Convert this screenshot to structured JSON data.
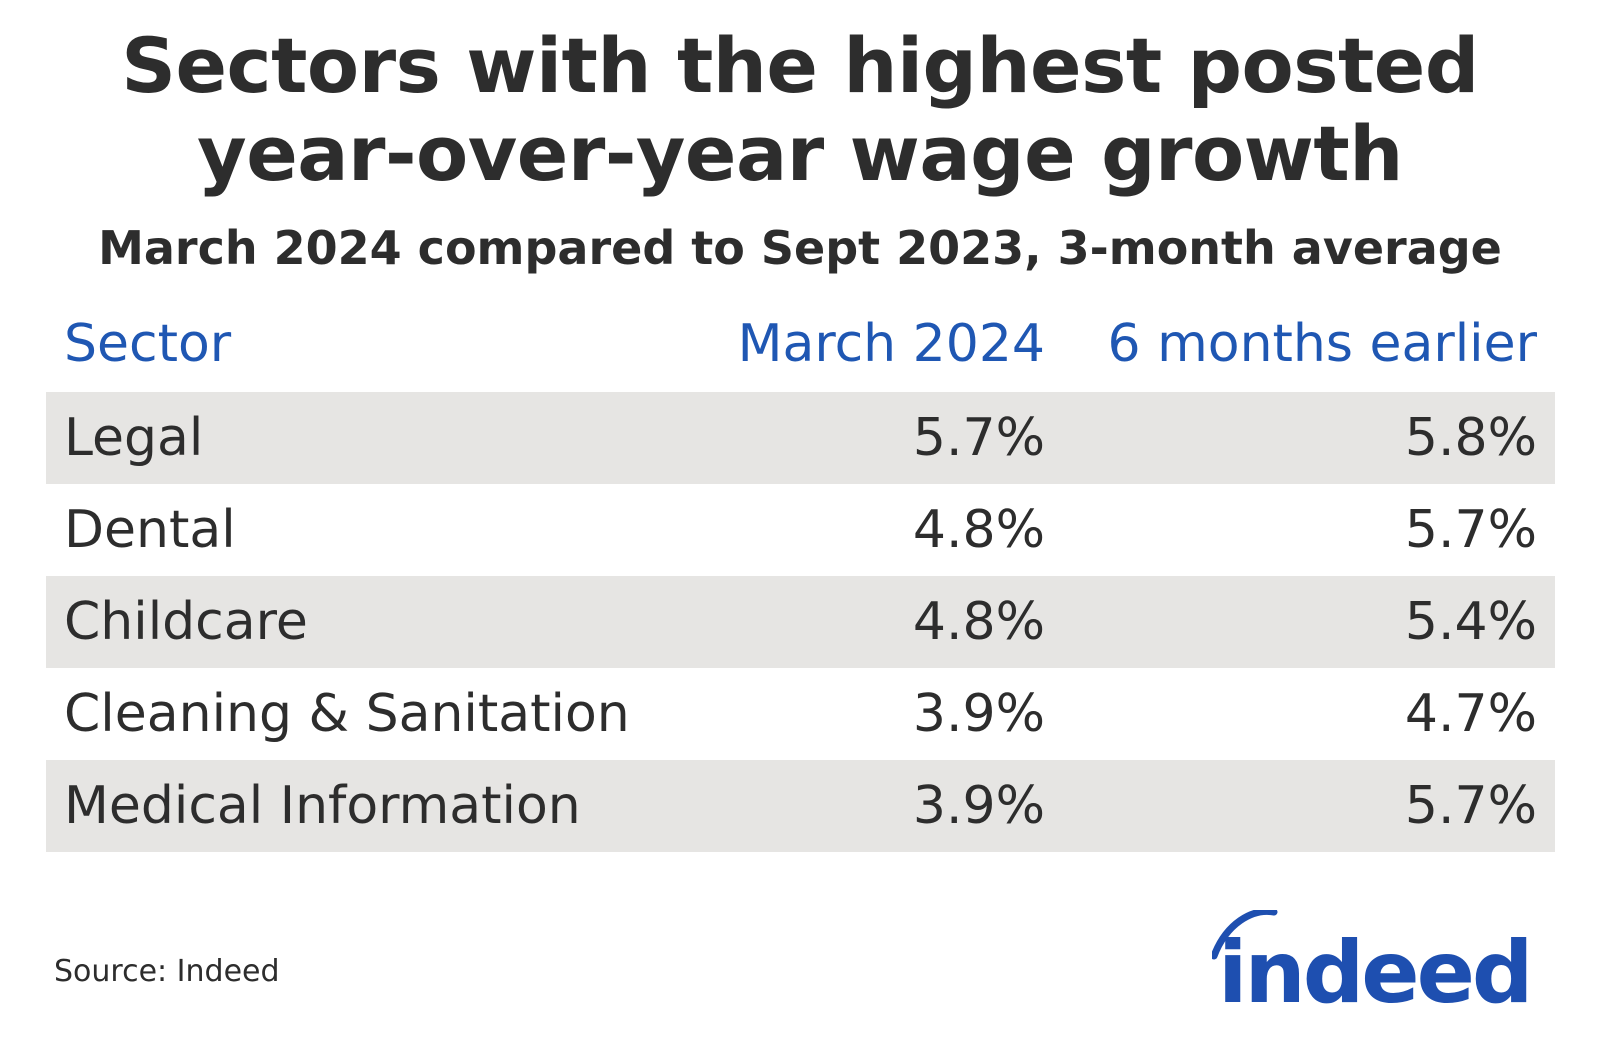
{
  "chart_data": {
    "type": "table",
    "title_lines": [
      "Sectors with the highest posted",
      "year-over-year wage growth"
    ],
    "subtitle": "March 2024 compared to Sept 2023, 3-month average",
    "columns": [
      "Sector",
      "March 2024",
      "6 months earlier"
    ],
    "rows": [
      {
        "sector": "Legal",
        "march_2024": "5.7%",
        "six_months_earlier": "5.8%"
      },
      {
        "sector": "Dental",
        "march_2024": "4.8%",
        "six_months_earlier": "5.7%"
      },
      {
        "sector": "Childcare",
        "march_2024": "4.8%",
        "six_months_earlier": "5.4%"
      },
      {
        "sector": "Cleaning & Sanitation",
        "march_2024": "3.9%",
        "six_months_earlier": "4.7%"
      },
      {
        "sector": "Medical Information",
        "march_2024": "3.9%",
        "six_months_earlier": "5.7%"
      }
    ],
    "source": "Source: Indeed"
  },
  "logo_text": "indeed",
  "colors": {
    "title": "#2d2d2d",
    "header": "#1f57b3",
    "row_shade": "#e6e5e3",
    "logo": "#1e4fb0"
  }
}
